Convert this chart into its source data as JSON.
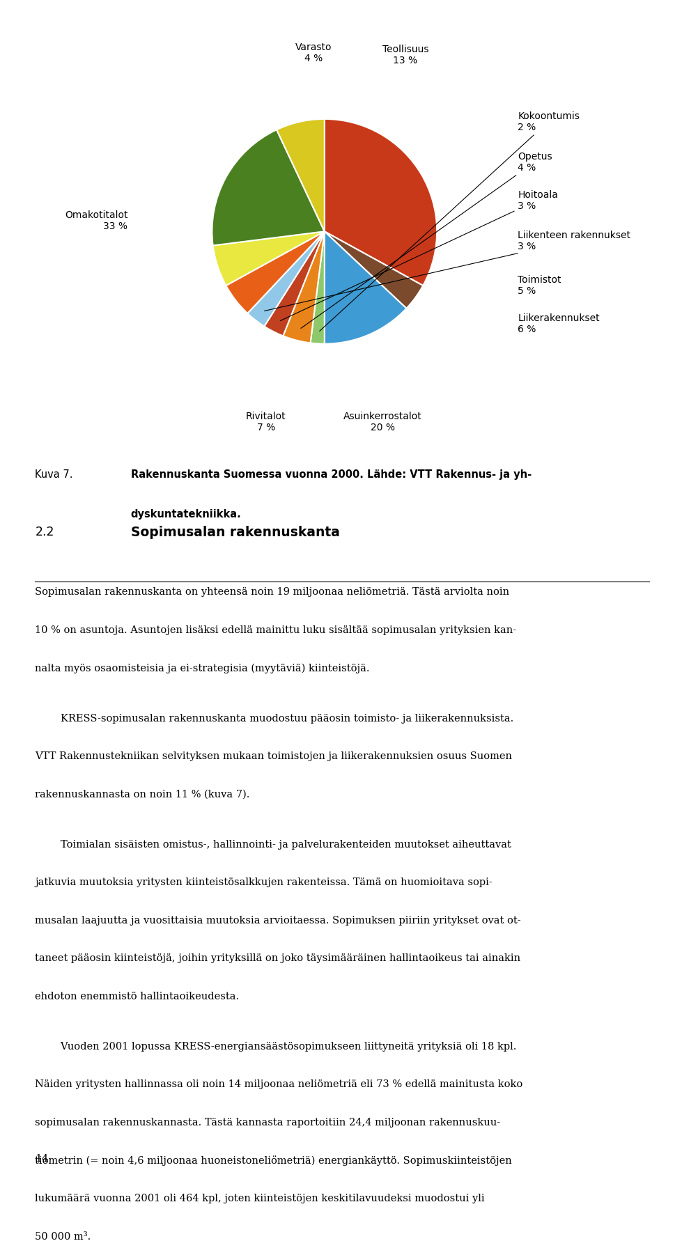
{
  "slice_data": [
    {
      "label": "Omakotitalot\n33 %",
      "value": 33,
      "color": "#C8391A"
    },
    {
      "label": "Varasto\n4 %",
      "value": 4,
      "color": "#7B4A2D"
    },
    {
      "label": "Teollisuus\n13 %",
      "value": 13,
      "color": "#3E9BD4"
    },
    {
      "label": "Kokoontumis\n2 %",
      "value": 2,
      "color": "#8DC96B"
    },
    {
      "label": "Opetus\n4 %",
      "value": 4,
      "color": "#E8841A"
    },
    {
      "label": "Hoitoala\n3 %",
      "value": 3,
      "color": "#C04020"
    },
    {
      "label": "Liikenteen rakennukset\n3 %",
      "value": 3,
      "color": "#91C8E8"
    },
    {
      "label": "Toimistot\n5 %",
      "value": 5,
      "color": "#E86018"
    },
    {
      "label": "Liikerakennukset\n6 %",
      "value": 6,
      "color": "#E8E840"
    },
    {
      "label": "Asuinkerrostalot\n20 %",
      "value": 20,
      "color": "#4A8020"
    },
    {
      "label": "Rivitalot\n7 %",
      "value": 7,
      "color": "#D8C820"
    }
  ],
  "figure_caption_label": "Kuva 7.",
  "figure_caption_bold1": "Rakennuskanta Suomessa vuonna 2000. Lähde: VTT Rakennus- ja yh-",
  "figure_caption_bold2": "dyskuntatekniikka.",
  "section_number": "2.2",
  "section_title": "Sopimusalan rakennuskanta",
  "para1": "Sopimusalan rakennuskanta on yhteensä noin 19 miljoonaa neliömetriä. Tästä arviolta noin\n10 % on asuntoja. Asuntojen lisäksi edellä mainittu luku sisältää sopimusalan yrityksien kan-\nnalta myös osaomisteisia ja ei-strategisia (myytäviä) kiinteistöjä.",
  "para2": "        KRESS-sopimusalan rakennuskanta muodostuu pääosin toimisto- ja liikerakennuksista.\nVTT Rakennustekniikan selvityksen mukaan toimistojen ja liikerakennuksien osuus Suomen\nrakennuskannasta on noin 11 % (kuva 7).",
  "para3": "        Toimialan sisäisten omistus-, hallinnointi- ja palvelurakenteiden muutokset aiheuttavat\njatkuvia muutoksia yritysten kiinteistösalkkujen rakenteissa. Tämä on huomioitava sopi-\nmusalan laajuutta ja vuosittaisia muutoksia arvioitaessa. Sopimuksen piiriin yritykset ovat ot-\ntaneet pääosin kiinteistöjä, joihin yrityksillä on joko täysimääräinen hallintaoikeus tai ainakin\nehdoton enemmistö hallintaoikeudesta.",
  "para4": "        Vuoden 2001 lopussa KRESS-energiansäästösopimukseen liittyneitä yrityksiä oli 18 kpl.\nNäiden yritysten hallinnassa oli noin 14 miljoonaa neliömetriä eli 73 % edellä mainitusta koko\nsopimusalan rakennuskannasta. Tästä kannasta raportoitiin 24,4 miljoonan rakennuskuu-\ntiometrin (= noin 4,6 miljoonaa huoneistoneliömetriä) energiankäyttö. Sopimuskiinteistöjen\nlukumäärä vuonna 2001 oli 464 kpl, joten kiinteistöjen keskitilavuudeksi muodostui yli\n50 000 m³.",
  "page_number": "14"
}
